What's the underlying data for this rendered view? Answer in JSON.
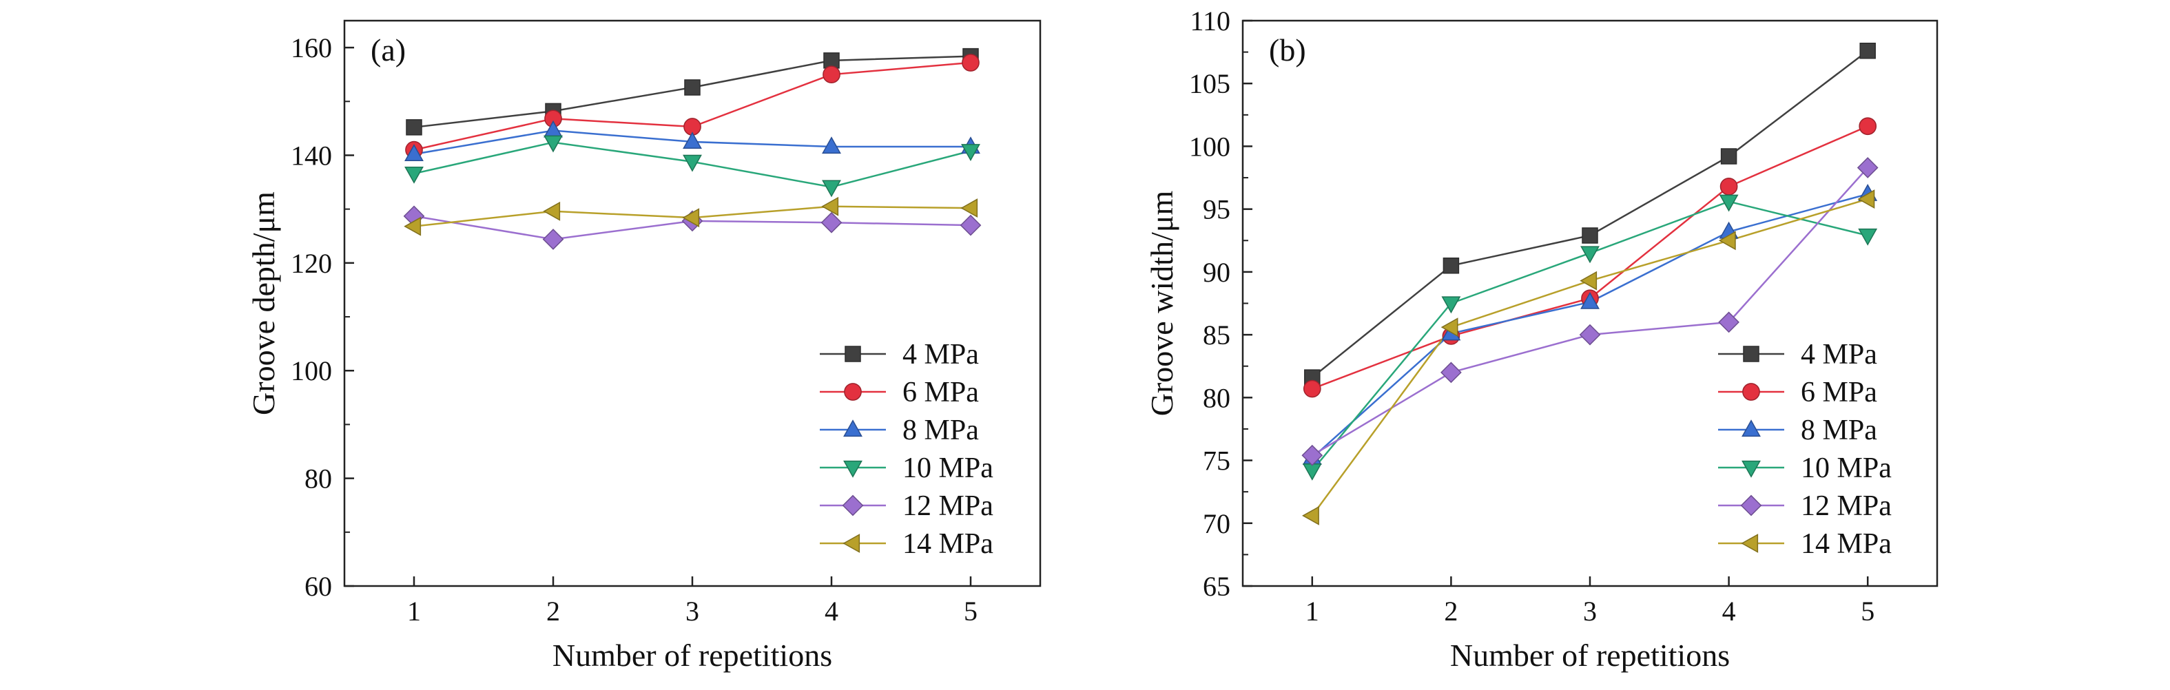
{
  "chart_data": [
    {
      "type": "line",
      "panel_label": "(a)",
      "x": [
        1,
        2,
        3,
        4,
        5
      ],
      "xlabel": "Number of repetitions",
      "ylabel": "Groove depth/μm",
      "xlim": [
        0.5,
        5.5
      ],
      "ylim": [
        60,
        165
      ],
      "yticks": [
        60,
        80,
        100,
        120,
        140,
        160
      ],
      "xticks": [
        1,
        2,
        3,
        4,
        5
      ],
      "legend_position": "bottom-right",
      "series": [
        {
          "name": "4 MPa",
          "color": "#404040",
          "marker": "square",
          "values": [
            145.2,
            148.2,
            152.6,
            157.6,
            158.4
          ]
        },
        {
          "name": "6 MPa",
          "color": "#e3313f",
          "marker": "circle",
          "values": [
            141.0,
            146.8,
            145.3,
            155.0,
            157.2
          ]
        },
        {
          "name": "8 MPa",
          "color": "#3a6fd0",
          "marker": "triangle-up",
          "values": [
            140.2,
            144.6,
            142.5,
            141.6,
            141.6
          ]
        },
        {
          "name": "10 MPa",
          "color": "#29a77a",
          "marker": "triangle-down",
          "values": [
            136.6,
            142.4,
            138.8,
            134.1,
            140.8
          ]
        },
        {
          "name": "12 MPa",
          "color": "#9b6fcf",
          "marker": "diamond",
          "values": [
            128.7,
            124.4,
            127.8,
            127.5,
            127.0
          ]
        },
        {
          "name": "14 MPa",
          "color": "#b8a02a",
          "marker": "triangle-left",
          "values": [
            126.8,
            129.6,
            128.4,
            130.5,
            130.2
          ]
        }
      ]
    },
    {
      "type": "line",
      "panel_label": "(b)",
      "x": [
        1,
        2,
        3,
        4,
        5
      ],
      "xlabel": "Number of repetitions",
      "ylabel": "Groove width/μm",
      "xlim": [
        0.5,
        5.5
      ],
      "ylim": [
        65,
        110
      ],
      "yticks": [
        65,
        70,
        75,
        80,
        85,
        90,
        95,
        100,
        105,
        110
      ],
      "xticks": [
        1,
        2,
        3,
        4,
        5
      ],
      "legend_position": "bottom-right",
      "series": [
        {
          "name": "4 MPa",
          "color": "#404040",
          "marker": "square",
          "values": [
            81.6,
            90.5,
            92.9,
            99.2,
            107.6
          ]
        },
        {
          "name": "6 MPa",
          "color": "#e3313f",
          "marker": "circle",
          "values": [
            80.7,
            84.9,
            87.9,
            96.8,
            101.6
          ]
        },
        {
          "name": "8 MPa",
          "color": "#3a6fd0",
          "marker": "triangle-up",
          "values": [
            75.2,
            85.1,
            87.6,
            93.2,
            96.2
          ]
        },
        {
          "name": "10 MPa",
          "color": "#29a77a",
          "marker": "triangle-down",
          "values": [
            74.2,
            87.5,
            91.5,
            95.6,
            92.9
          ]
        },
        {
          "name": "12 MPa",
          "color": "#9b6fcf",
          "marker": "diamond",
          "values": [
            75.4,
            82.0,
            85.0,
            86.0,
            98.3
          ]
        },
        {
          "name": "14 MPa",
          "color": "#b8a02a",
          "marker": "triangle-left",
          "values": [
            70.6,
            85.6,
            89.3,
            92.5,
            95.8
          ]
        }
      ]
    }
  ]
}
